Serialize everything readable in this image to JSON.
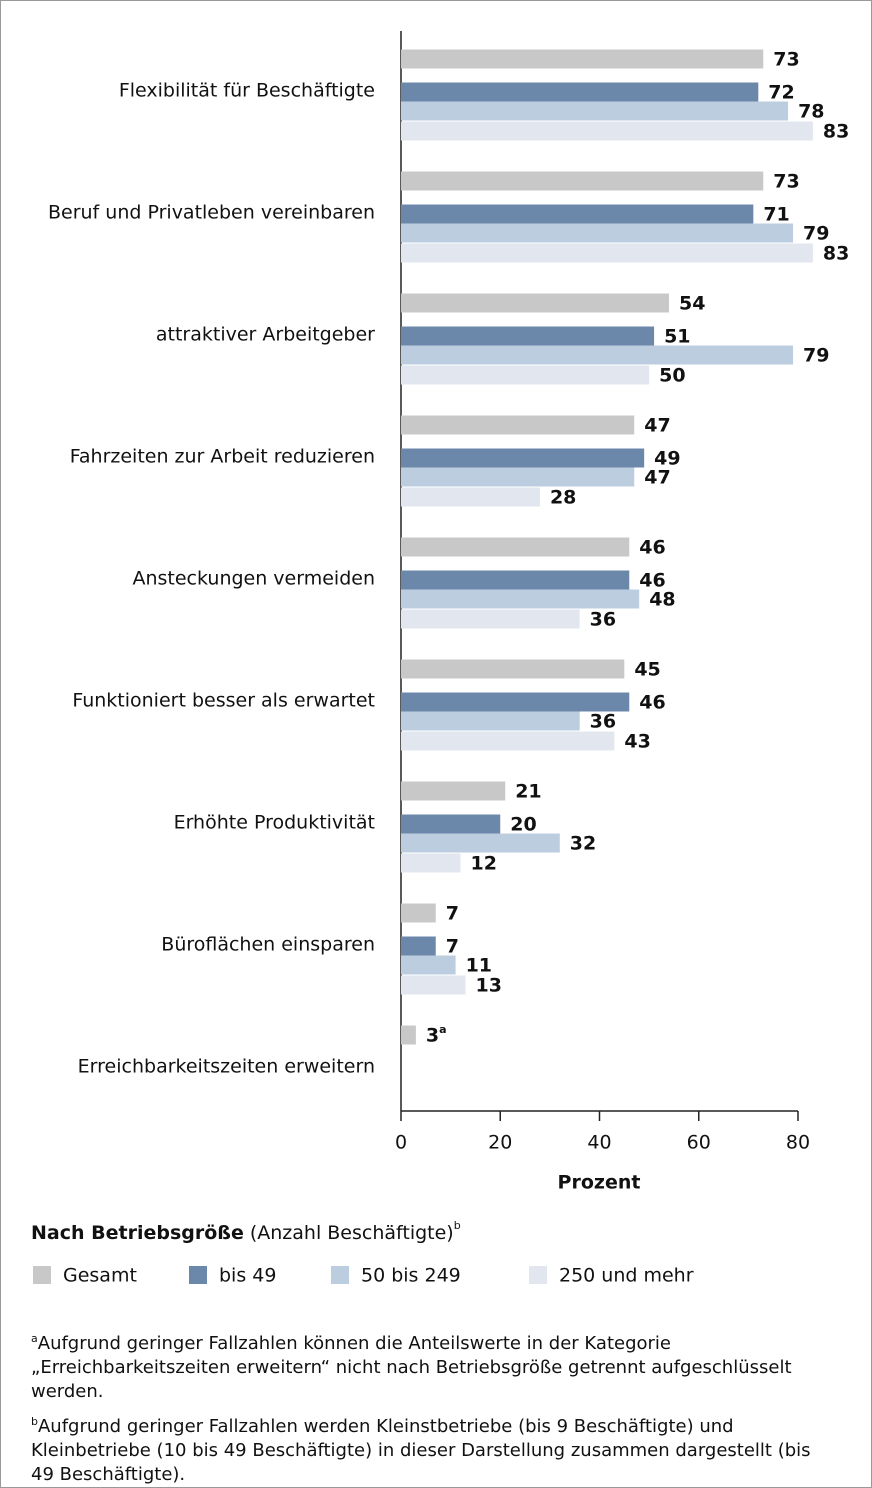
{
  "chart_data": {
    "type": "hbar",
    "categories": [
      "Flexibilität für Beschäftigte",
      "Beruf und Privatleben vereinbaren",
      "attraktiver Arbeitgeber",
      "Fahrzeiten zur Arbeit reduzieren",
      "Ansteckungen vermeiden",
      "Funktioniert besser als erwartet",
      "Erhöhte Produktivität",
      "Büroflächen einsparen",
      "Erreichbarkeitszeiten erweitern"
    ],
    "series": [
      {
        "name": "Gesamt",
        "color": "#c8c8c8",
        "values": [
          73,
          73,
          54,
          47,
          46,
          45,
          21,
          7,
          3
        ],
        "value_superscripts": [
          null,
          null,
          null,
          null,
          null,
          null,
          null,
          null,
          "a"
        ]
      },
      {
        "name": "bis 49",
        "color": "#6b87aa",
        "values": [
          72,
          71,
          51,
          49,
          46,
          46,
          20,
          7,
          null
        ]
      },
      {
        "name": "50 bis 249",
        "color": "#bccde0",
        "values": [
          78,
          79,
          79,
          47,
          48,
          36,
          32,
          11,
          null
        ]
      },
      {
        "name": "250 und mehr",
        "color": "#e2e7ef",
        "values": [
          83,
          83,
          50,
          28,
          36,
          43,
          12,
          13,
          null
        ]
      }
    ],
    "xlabel": "Prozent",
    "xlim": [
      0,
      80
    ],
    "xticks": [
      0,
      20,
      40,
      60,
      80
    ],
    "legend_title": "Nach Betriebsgröße",
    "legend_subtitle": "(Anzahl Beschäftigte)",
    "legend_title_mark": "b",
    "footnotes": [
      {
        "mark": "a",
        "text": "Aufgrund geringer Fallzahlen können die Anteilswerte in der Kategorie „Erreichbarkeitszeiten erweitern“ nicht nach Betriebsgröße getrennt aufgeschlüsselt werden."
      },
      {
        "mark": "b",
        "text": "Aufgrund geringer Fallzahlen werden Kleinstbetriebe (bis 9 Beschäftigte) und Kleinbetriebe (10 bis 49 Beschäftigte) in dieser Darstellung zusammen dargestellt (bis 49 Beschäftigte)."
      }
    ]
  }
}
